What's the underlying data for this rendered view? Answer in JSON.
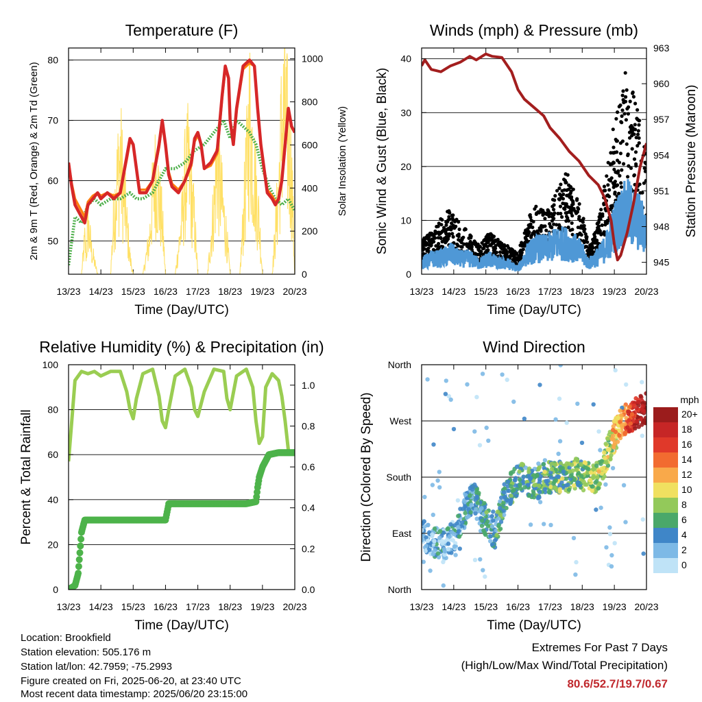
{
  "chart_data": [
    {
      "type": "line",
      "title": "Temperature (F)",
      "xlabel": "Time (Day/UTC)",
      "ylabel": "2m & 9m T (Red, Orange) & 2m Td (Green)",
      "ylabel_right": "Solar Insolation (Yellow)",
      "xticks": [
        "13/23",
        "14/23",
        "15/23",
        "16/23",
        "17/23",
        "18/23",
        "19/23",
        "20/23"
      ],
      "xlim": [
        0,
        7
      ],
      "ylim": [
        44.5,
        82
      ],
      "yticks": [
        50,
        60,
        70,
        80
      ],
      "ylim_right": [
        0,
        1050
      ],
      "yticks_right": [
        0,
        200,
        400,
        600,
        800,
        1000
      ],
      "grid": "horizontal",
      "series": [
        {
          "role": "2m T",
          "color": "#d62728",
          "x": [
            0,
            0.1,
            0.2,
            0.3,
            0.4,
            0.5,
            0.6,
            0.75,
            0.9,
            1.0,
            1.2,
            1.4,
            1.6,
            1.8,
            1.9,
            2.0,
            2.1,
            2.2,
            2.4,
            2.6,
            2.8,
            2.9,
            3.0,
            3.1,
            3.2,
            3.4,
            3.6,
            3.8,
            3.9,
            4.0,
            4.1,
            4.2,
            4.4,
            4.6,
            4.75,
            4.85,
            4.95,
            5.0,
            5.1,
            5.2,
            5.4,
            5.6,
            5.75,
            5.85,
            5.95,
            6.05,
            6.15,
            6.3,
            6.4,
            6.5,
            6.6,
            6.7,
            6.8,
            6.9,
            7.0
          ],
          "y": [
            63,
            59,
            56,
            55,
            54,
            53,
            56,
            57,
            58,
            57,
            58,
            57,
            58,
            64,
            67,
            66,
            62,
            58,
            58,
            60,
            66,
            70,
            66,
            61,
            59,
            58,
            60,
            63,
            67,
            68,
            66,
            62,
            63,
            65,
            74,
            79,
            77,
            70,
            66,
            72,
            79,
            80,
            79,
            72,
            66,
            62,
            58,
            57,
            56,
            57,
            60,
            66,
            72,
            69,
            68
          ]
        },
        {
          "role": "9m T",
          "color": "#ff7f0e",
          "x": [
            0,
            0.1,
            0.2,
            0.3,
            0.4,
            0.5,
            0.6,
            0.75,
            0.9,
            1.0,
            1.2,
            1.4,
            1.6,
            1.8,
            1.9,
            2.0,
            2.1,
            2.2,
            2.4,
            2.6,
            2.8,
            2.9,
            3.0,
            3.1,
            3.2,
            3.4,
            3.6,
            3.8,
            3.9,
            4.0,
            4.1,
            4.2,
            4.4,
            4.6,
            4.75,
            4.85,
            4.95,
            5.0,
            5.1,
            5.2,
            5.4,
            5.6,
            5.75,
            5.85,
            5.95,
            6.05,
            6.15,
            6.3,
            6.4,
            6.5,
            6.6,
            6.7,
            6.8,
            6.9,
            7.0
          ],
          "y": [
            63,
            59.5,
            57,
            56,
            55,
            54,
            56.5,
            57.5,
            58,
            57.5,
            58,
            57.5,
            58,
            63.5,
            66.5,
            66,
            62,
            58.5,
            58.5,
            60,
            65.5,
            69.5,
            66,
            61.5,
            59.5,
            58.5,
            60,
            62.5,
            66.5,
            67.5,
            66,
            62,
            62.5,
            64.5,
            73.5,
            78.5,
            77,
            70,
            66,
            71.5,
            78.5,
            79.5,
            79,
            72,
            66,
            62,
            58.5,
            57.5,
            56.5,
            57,
            60,
            65.5,
            71.5,
            69,
            68
          ]
        },
        {
          "role": "2m Td",
          "color": "#4daf4a",
          "x": [
            0,
            0.1,
            0.2,
            0.4,
            0.6,
            0.8,
            1.0,
            1.3,
            1.6,
            1.9,
            2.1,
            2.3,
            2.6,
            2.8,
            3.0,
            3.3,
            3.6,
            3.9,
            4.2,
            4.5,
            4.8,
            5.0,
            5.2,
            5.4,
            5.6,
            5.8,
            6.0,
            6.2,
            6.4,
            6.6,
            6.8,
            7.0
          ],
          "y": [
            46,
            50,
            54,
            53,
            56,
            57,
            56,
            57,
            57,
            58,
            57,
            57,
            58,
            60,
            62,
            62,
            63,
            65,
            66,
            68,
            70,
            67,
            70,
            69,
            68,
            66,
            62,
            59,
            57,
            56,
            57,
            55
          ]
        },
        {
          "role": "Solar Insolation",
          "color": "#ffe066",
          "axis": "right",
          "x": [
            0,
            0.4,
            0.5,
            0.55,
            0.6,
            0.7,
            0.9,
            1.0,
            1.3,
            1.4,
            1.5,
            1.6,
            1.7,
            1.9,
            2.0,
            2.3,
            2.5,
            2.6,
            2.7,
            2.9,
            3.0,
            3.3,
            3.5,
            3.6,
            3.7,
            3.9,
            4.0,
            4.3,
            4.5,
            4.6,
            4.7,
            4.9,
            5.0,
            5.3,
            5.5,
            5.6,
            5.7,
            5.9,
            6.0,
            6.3,
            6.5,
            6.6,
            6.7,
            6.9,
            7.0
          ],
          "y": [
            0,
            0,
            200,
            120,
            300,
            150,
            0,
            0,
            0,
            350,
            550,
            700,
            500,
            100,
            0,
            0,
            200,
            450,
            600,
            300,
            0,
            0,
            300,
            550,
            650,
            300,
            0,
            0,
            400,
            700,
            500,
            200,
            0,
            0,
            600,
            950,
            700,
            300,
            0,
            0,
            500,
            900,
            950,
            600,
            0
          ]
        }
      ]
    },
    {
      "type": "scatter",
      "title": "Winds (mph) & Pressure (mb)",
      "xlabel": "Time (Day/UTC)",
      "ylabel": "Sonic Wind & Gust (Blue, Black)",
      "ylabel_right": "Station Pressure (Maroon)",
      "xticks": [
        "13/23",
        "14/23",
        "15/23",
        "16/23",
        "17/23",
        "18/23",
        "19/23",
        "20/23"
      ],
      "xlim": [
        0,
        7
      ],
      "ylim": [
        0,
        42
      ],
      "yticks": [
        0,
        10,
        20,
        30,
        40
      ],
      "ylim_right": [
        944,
        963
      ],
      "yticks_right": [
        945,
        948,
        951,
        954,
        957,
        960,
        963
      ],
      "grid": "horizontal",
      "series": [
        {
          "role": "Wind",
          "color": "#4f98d6",
          "x": [
            0,
            0.3,
            0.6,
            0.9,
            1.2,
            1.5,
            1.8,
            2.1,
            2.4,
            2.7,
            3.0,
            3.3,
            3.6,
            3.9,
            4.2,
            4.5,
            4.8,
            5.0,
            5.2,
            5.4,
            5.6,
            5.8,
            6.0,
            6.2,
            6.4,
            6.6,
            6.8,
            7.0
          ],
          "y": [
            2,
            3,
            3,
            4,
            3,
            3,
            2,
            3,
            2,
            2,
            1,
            4,
            5,
            5,
            6,
            6,
            5,
            4,
            2,
            3,
            4,
            6,
            9,
            11,
            12,
            11,
            10,
            8
          ]
        },
        {
          "role": "Gust",
          "color": "#000000",
          "x": [
            0,
            0.3,
            0.6,
            0.9,
            1.2,
            1.5,
            1.8,
            2.1,
            2.4,
            2.7,
            3.0,
            3.3,
            3.6,
            3.9,
            4.2,
            4.5,
            4.8,
            5.0,
            5.2,
            5.4,
            5.6,
            5.8,
            6.0,
            6.2,
            6.4,
            6.6,
            6.8,
            7.0
          ],
          "y": [
            5,
            6,
            8,
            10,
            7,
            6,
            4,
            6,
            5,
            4,
            3,
            8,
            10,
            9,
            12,
            15,
            12,
            9,
            4,
            6,
            10,
            16,
            22,
            26,
            30,
            27,
            22,
            18
          ]
        },
        {
          "role": "Pressure",
          "color": "#a31e1e",
          "axis": "right",
          "x": [
            0,
            0.1,
            0.3,
            0.6,
            0.9,
            1.2,
            1.5,
            1.7,
            2.0,
            2.2,
            2.5,
            2.8,
            3.0,
            3.2,
            3.5,
            3.8,
            4.0,
            4.3,
            4.6,
            4.9,
            5.2,
            5.5,
            5.7,
            5.9,
            6.0,
            6.1,
            6.2,
            6.4,
            6.6,
            6.8,
            7.0
          ],
          "y": [
            961.5,
            962,
            961.2,
            961,
            961.5,
            961.8,
            962.3,
            962,
            962.5,
            962.3,
            962.2,
            961,
            959.5,
            958.7,
            958,
            957.3,
            956.3,
            955.4,
            954.3,
            953.5,
            952.3,
            951.5,
            950.4,
            948.5,
            946.5,
            945.2,
            945.6,
            947.5,
            950,
            953,
            955
          ]
        }
      ]
    },
    {
      "type": "line",
      "title": "Relative Humidity (%) & Precipitation (in)",
      "xlabel": "Time (Day/UTC)",
      "ylabel": "Percent & Total Rainfall",
      "xticks": [
        "13/23",
        "14/23",
        "15/23",
        "16/23",
        "17/23",
        "18/23",
        "19/23",
        "20/23"
      ],
      "xlim": [
        0,
        7
      ],
      "ylim": [
        0,
        100
      ],
      "yticks": [
        0,
        20,
        40,
        60,
        80,
        100
      ],
      "ylim_right": [
        0,
        1.1
      ],
      "yticks_right": [
        "0.0",
        "0.2",
        "0.4",
        "0.6",
        "0.8",
        "1.0"
      ],
      "grid": "horizontal",
      "series": [
        {
          "role": "Relative Humidity",
          "color": "#9acd52",
          "x": [
            0,
            0.1,
            0.2,
            0.4,
            0.6,
            0.8,
            1.0,
            1.3,
            1.6,
            1.8,
            1.9,
            2.0,
            2.1,
            2.3,
            2.6,
            2.8,
            2.9,
            3.0,
            3.1,
            3.3,
            3.6,
            3.8,
            3.9,
            4.0,
            4.2,
            4.5,
            4.8,
            4.9,
            5.0,
            5.2,
            5.5,
            5.7,
            5.8,
            5.9,
            6.0,
            6.1,
            6.3,
            6.5,
            6.6,
            6.7,
            6.8,
            7.0
          ],
          "y": [
            57,
            75,
            93,
            97,
            96,
            97,
            95,
            97,
            97,
            88,
            80,
            76,
            85,
            96,
            98,
            86,
            75,
            72,
            80,
            95,
            98,
            90,
            80,
            77,
            88,
            98,
            97,
            85,
            80,
            95,
            98,
            90,
            75,
            65,
            68,
            90,
            96,
            93,
            86,
            75,
            62,
            60
          ]
        },
        {
          "role": "Total Rainfall",
          "color": "#4db34a",
          "axis": "right",
          "x": [
            0,
            0.2,
            0.25,
            0.3,
            0.4,
            0.5,
            0.6,
            1.0,
            2.0,
            3.0,
            3.05,
            3.1,
            4.0,
            5.0,
            5.5,
            5.8,
            5.85,
            5.9,
            6.0,
            6.1,
            6.2,
            6.5,
            7.0
          ],
          "y": [
            0,
            0.02,
            0.05,
            0.08,
            0.28,
            0.34,
            0.34,
            0.34,
            0.34,
            0.34,
            0.38,
            0.42,
            0.42,
            0.42,
            0.42,
            0.43,
            0.5,
            0.55,
            0.6,
            0.63,
            0.66,
            0.67,
            0.67
          ]
        }
      ]
    },
    {
      "type": "scatter",
      "title": "Wind Direction",
      "xlabel": "Time (Day/UTC)",
      "ylabel": "Direction (Colored By Speed)",
      "xticks": [
        "13/23",
        "14/23",
        "15/23",
        "16/23",
        "17/23",
        "18/23",
        "19/23",
        "20/23"
      ],
      "xlim": [
        0,
        7
      ],
      "yticks": [
        "North",
        "East",
        "South",
        "West",
        "North"
      ],
      "ylim": [
        0,
        360
      ],
      "grid": "horizontal",
      "colorbar_title": "mph",
      "colorbar_labels": [
        "20+",
        "18",
        "16",
        "14",
        "12",
        "10",
        "8",
        "6",
        "4",
        "2",
        "0"
      ],
      "colorbar_colors": [
        "#9b1c1c",
        "#c62626",
        "#e0392a",
        "#f26b30",
        "#f9a94a",
        "#f0e060",
        "#93c95a",
        "#4aa86a",
        "#3f86c8",
        "#7db9e6",
        "#bfe3f7"
      ],
      "series": [
        {
          "role": "Direction",
          "x": [
            0,
            0.3,
            0.6,
            0.9,
            1.1,
            1.3,
            1.6,
            1.9,
            2.1,
            2.3,
            2.6,
            2.9,
            3.1,
            3.3,
            3.6,
            3.9,
            4.2,
            4.5,
            4.8,
            5.1,
            5.4,
            5.6,
            5.8,
            6.0,
            6.2,
            6.4,
            6.6,
            6.8,
            7.0
          ],
          "y": [
            90,
            80,
            70,
            80,
            90,
            120,
            150,
            120,
            100,
            90,
            150,
            170,
            180,
            170,
            170,
            180,
            180,
            180,
            185,
            180,
            180,
            190,
            220,
            245,
            265,
            275,
            280,
            285,
            290
          ]
        }
      ]
    }
  ],
  "info": {
    "location": "Location: Brookfield",
    "elevation": "Station elevation: 505.176 m",
    "latlon": "Station lat/lon: 42.7959; -75.2993",
    "created": "Figure created on Fri, 2025-06-20, at 23:40 UTC",
    "timestamp": "Most recent data timestamp: 2025/06/20 23:15:00"
  },
  "extremes": {
    "title": "Extremes For Past 7 Days",
    "subtitle": "(High/Low/Max Wind/Total Precipitation)",
    "values": "80.6/52.7/19.7/0.67",
    "values_color": "#c0292e"
  }
}
